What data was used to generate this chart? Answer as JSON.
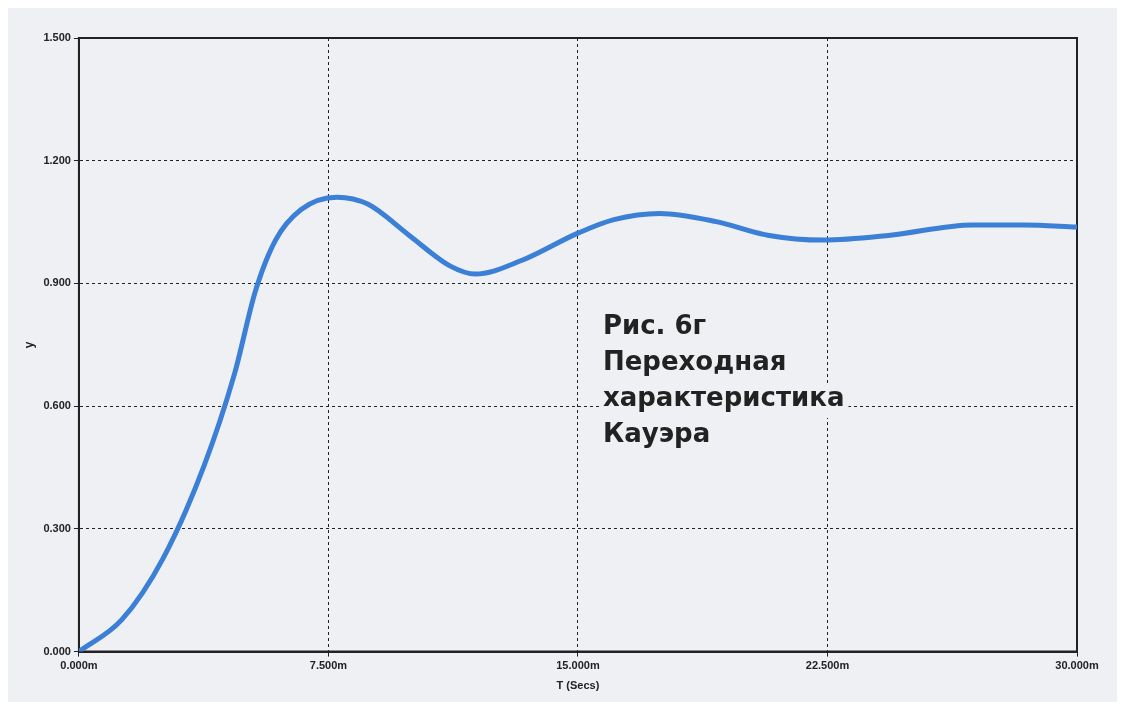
{
  "chart_data": {
    "type": "line",
    "xlabel": "T (Secs)",
    "ylabel": "y",
    "annotations": [
      "Рис. 6г Переходная характеристика Кауэра"
    ],
    "xlim": [
      0,
      30
    ],
    "ylim": [
      0,
      1.5
    ],
    "xticks": [
      {
        "value": 0,
        "label": "0.000m"
      },
      {
        "value": 7.5,
        "label": "7.500m"
      },
      {
        "value": 15,
        "label": "15.000m"
      },
      {
        "value": 22.5,
        "label": "22.500m"
      },
      {
        "value": 30,
        "label": "30.000m"
      }
    ],
    "yticks": [
      {
        "value": 0,
        "label": "0.000"
      },
      {
        "value": 0.3,
        "label": "0.300"
      },
      {
        "value": 0.6,
        "label": "0.600"
      },
      {
        "value": 0.9,
        "label": "0.900"
      },
      {
        "value": 1.2,
        "label": "1.200"
      },
      {
        "value": 1.5,
        "label": "1.500"
      }
    ],
    "grid": true,
    "marker": "none",
    "line_style": "solid",
    "series": [
      {
        "color": "#3b80d6",
        "x": [
          0,
          1.29,
          2.53,
          3.76,
          4.68,
          5.3,
          5.91,
          6.68,
          7.76,
          8.68,
          9.92,
          11.15,
          11.92,
          13.3,
          15,
          16.08,
          17.46,
          19.16,
          20.7,
          22.39,
          24.39,
          26.86,
          28.4,
          30
        ],
        "values": [
          0,
          0.078,
          0.228,
          0.454,
          0.68,
          0.88,
          1.006,
          1.081,
          1.111,
          1.094,
          1.018,
          0.943,
          0.923,
          0.956,
          1.023,
          1.056,
          1.071,
          1.051,
          1.018,
          1.006,
          1.018,
          1.043,
          1.043,
          1.038
        ]
      }
    ]
  }
}
